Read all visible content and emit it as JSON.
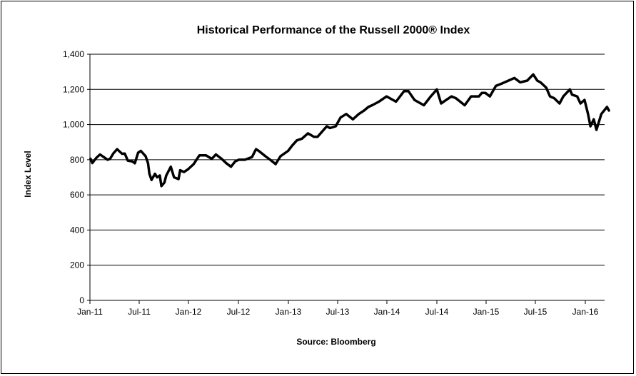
{
  "chart_data": {
    "type": "line",
    "title": "Historical Performance of the Russell 2000® Index",
    "xlabel": "Source: Bloomberg",
    "ylabel": "Index Level",
    "ylim": [
      0,
      1400
    ],
    "yticks": [
      "0",
      "200",
      "400",
      "600",
      "800",
      "1,000",
      "1,200",
      "1,400"
    ],
    "xticks": [
      "Jan-11",
      "Jul-11",
      "Jan-12",
      "Jul-12",
      "Jan-13",
      "Jul-13",
      "Jan-14",
      "Jul-14",
      "Jan-15",
      "Jul-15",
      "Jan-16"
    ],
    "grid": "horizontal",
    "line_color": "#000000",
    "series": [
      {
        "x": [
          "2011-01-03",
          "2011-01-10",
          "2011-01-24",
          "2011-02-07",
          "2011-02-21",
          "2011-03-07",
          "2011-03-16",
          "2011-03-28",
          "2011-04-11",
          "2011-04-29",
          "2011-05-09",
          "2011-05-20",
          "2011-06-06",
          "2011-06-15",
          "2011-06-27",
          "2011-07-07",
          "2011-07-25",
          "2011-08-03",
          "2011-08-08",
          "2011-08-16",
          "2011-08-29",
          "2011-09-06",
          "2011-09-16",
          "2011-09-22",
          "2011-10-03",
          "2011-10-10",
          "2011-10-27",
          "2011-11-08",
          "2011-11-25",
          "2011-12-01",
          "2011-12-15",
          "2011-12-30",
          "2012-01-20",
          "2012-02-10",
          "2012-03-05",
          "2012-03-26",
          "2012-04-10",
          "2012-05-01",
          "2012-05-18",
          "2012-06-04",
          "2012-06-19",
          "2012-07-02",
          "2012-07-25",
          "2012-08-20",
          "2012-09-04",
          "2012-09-14",
          "2012-10-08",
          "2012-10-26",
          "2012-11-15",
          "2012-12-03",
          "2012-12-31",
          "2013-01-15",
          "2013-02-01",
          "2013-02-20",
          "2013-03-14",
          "2013-04-05",
          "2013-04-18",
          "2013-05-22",
          "2013-06-03",
          "2013-06-24",
          "2013-07-12",
          "2013-08-02",
          "2013-08-27",
          "2013-09-18",
          "2013-10-08",
          "2013-10-24",
          "2013-11-07",
          "2013-12-02",
          "2013-12-31",
          "2014-02-03",
          "2014-03-04",
          "2014-03-20",
          "2014-04-11",
          "2014-05-15",
          "2014-06-09",
          "2014-07-01",
          "2014-07-17",
          "2014-08-05",
          "2014-08-25",
          "2014-09-10",
          "2014-10-13",
          "2014-11-06",
          "2014-12-05",
          "2014-12-16",
          "2014-12-29",
          "2015-01-15",
          "2015-02-06",
          "2015-03-02",
          "2015-03-24",
          "2015-04-15",
          "2015-05-06",
          "2015-06-01",
          "2015-06-23",
          "2015-07-08",
          "2015-07-20",
          "2015-08-10",
          "2015-08-24",
          "2015-09-08",
          "2015-09-28",
          "2015-10-12",
          "2015-11-05",
          "2015-11-13",
          "2015-12-02",
          "2015-12-14",
          "2015-12-29",
          "2016-01-11",
          "2016-01-20",
          "2016-02-01",
          "2016-02-11",
          "2016-02-29",
          "2016-03-21",
          "2016-03-28"
        ],
        "values": [
          805,
          781,
          810,
          830,
          815,
          800,
          805,
          836,
          860,
          834,
          835,
          795,
          790,
          780,
          840,
          850,
          820,
          780,
          720,
          685,
          720,
          700,
          710,
          650,
          670,
          710,
          760,
          700,
          690,
          740,
          730,
          745,
          775,
          825,
          825,
          805,
          830,
          805,
          780,
          760,
          790,
          800,
          800,
          815,
          860,
          850,
          820,
          800,
          775,
          820,
          850,
          880,
          910,
          920,
          950,
          930,
          930,
          990,
          980,
          990,
          1040,
          1060,
          1030,
          1060,
          1080,
          1100,
          1110,
          1130,
          1160,
          1130,
          1190,
          1190,
          1140,
          1110,
          1160,
          1200,
          1120,
          1140,
          1160,
          1150,
          1110,
          1160,
          1160,
          1180,
          1180,
          1160,
          1220,
          1235,
          1250,
          1265,
          1240,
          1250,
          1285,
          1250,
          1240,
          1210,
          1160,
          1150,
          1120,
          1160,
          1200,
          1170,
          1160,
          1120,
          1140,
          1060,
          990,
          1030,
          970,
          1060,
          1100,
          1080
        ]
      }
    ]
  }
}
